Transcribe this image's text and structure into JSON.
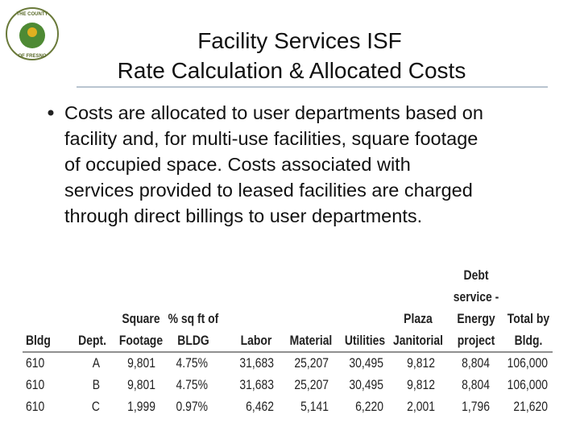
{
  "logo": {
    "top": "THE COUNTY",
    "bottom": "OF FRESNO"
  },
  "header": {
    "title": [
      "Facility Services ISF",
      "Rate Calculation & Allocated Costs"
    ]
  },
  "bullet": [
    "Costs are allocated to user departments based on",
    "facility and, for multi-use facilities, square footage",
    "of occupied space.  Costs associated with",
    "services provided to leased facilities are charged",
    "through direct billings to user departments."
  ],
  "table": {
    "headers": [
      [
        "Bldg"
      ],
      [
        "Dept."
      ],
      [
        "Square",
        "Footage"
      ],
      [
        "% sq ft of",
        "BLDG"
      ],
      [
        "Labor"
      ],
      [
        "Material"
      ],
      [
        "Utilities"
      ],
      [
        "Plaza",
        "Janitorial"
      ],
      [
        "Debt",
        "service -",
        "Energy",
        "project"
      ],
      [
        "Total by",
        "Bldg."
      ]
    ],
    "rows": [
      [
        "610",
        "A",
        "9,801",
        "4.75%",
        "31,683",
        "25,207",
        "30,495",
        "9,812",
        "8,804",
        "106,000"
      ],
      [
        "610",
        "B",
        "9,801",
        "4.75%",
        "31,683",
        "25,207",
        "30,495",
        "9,812",
        "8,804",
        "106,000"
      ],
      [
        "610",
        "C",
        "1,999",
        "0.97%",
        "6,462",
        "5,141",
        "6,220",
        "2,001",
        "1,796",
        "21,620"
      ]
    ]
  }
}
